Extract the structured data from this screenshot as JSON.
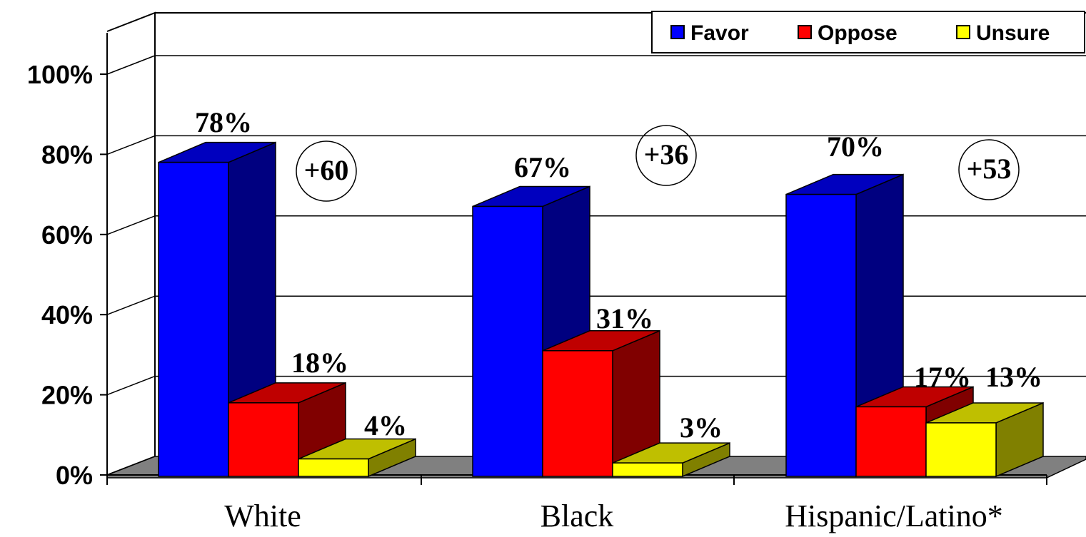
{
  "chart_data": {
    "type": "bar",
    "categories": [
      "White",
      "Black",
      "Hispanic/Latino*"
    ],
    "series": [
      {
        "name": "Favor",
        "values": [
          78,
          67,
          70
        ],
        "labels": [
          "78%",
          "67%",
          "70%"
        ],
        "color": "#0000ff"
      },
      {
        "name": "Oppose",
        "values": [
          18,
          31,
          17
        ],
        "labels": [
          "18%",
          "31%",
          "17%"
        ],
        "color": "#ff0000"
      },
      {
        "name": "Unsure",
        "values": [
          4,
          3,
          13
        ],
        "labels": [
          "4%",
          "3%",
          "13%"
        ],
        "color": "#ffff00"
      }
    ],
    "differences": [
      "+60",
      "+36",
      "+53"
    ],
    "yticks": [
      "0%",
      "20%",
      "40%",
      "60%",
      "80%",
      "100%"
    ],
    "ylim": [
      0,
      100
    ],
    "grid": true,
    "legend_position": "top-right",
    "style": "3d-clustered-bar"
  }
}
